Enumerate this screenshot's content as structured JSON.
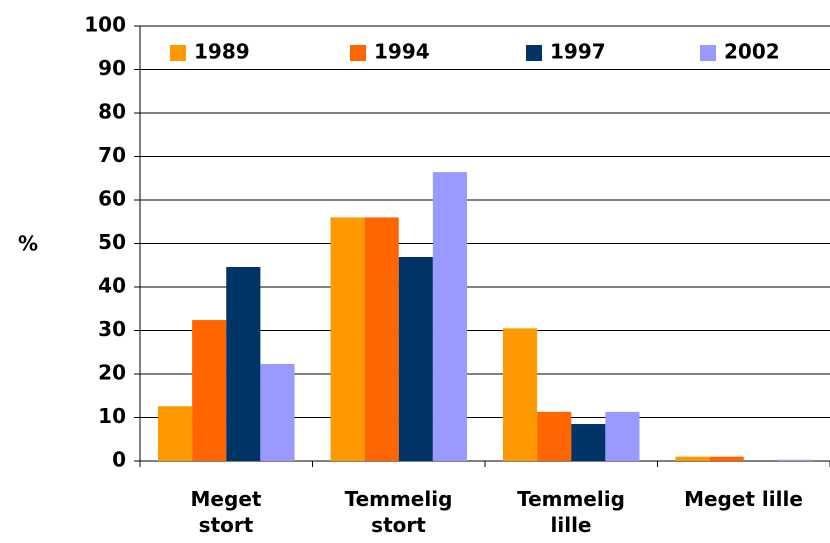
{
  "chart_data": {
    "type": "bar",
    "ylabel": "%",
    "categories": [
      "Meget\nstort",
      "Temmelig\nstort",
      "Temmelig\nlille",
      "Meget lille"
    ],
    "series": [
      {
        "name": "1989",
        "color": "#ff9900",
        "values": [
          12.6,
          56,
          30.5,
          1.0
        ]
      },
      {
        "name": "1994",
        "color": "#ff6600",
        "values": [
          32.4,
          56,
          11.3,
          1.0
        ]
      },
      {
        "name": "1997",
        "color": "#003366",
        "values": [
          44.6,
          46.9,
          8.5,
          0
        ]
      },
      {
        "name": "2002",
        "color": "#9999ff",
        "values": [
          22.3,
          66.4,
          11.3,
          0.3
        ]
      }
    ],
    "ylim": [
      0,
      100
    ],
    "yticks": [
      0,
      10,
      20,
      30,
      40,
      50,
      60,
      70,
      80,
      90,
      100
    ],
    "grid": true,
    "legend": "top"
  }
}
